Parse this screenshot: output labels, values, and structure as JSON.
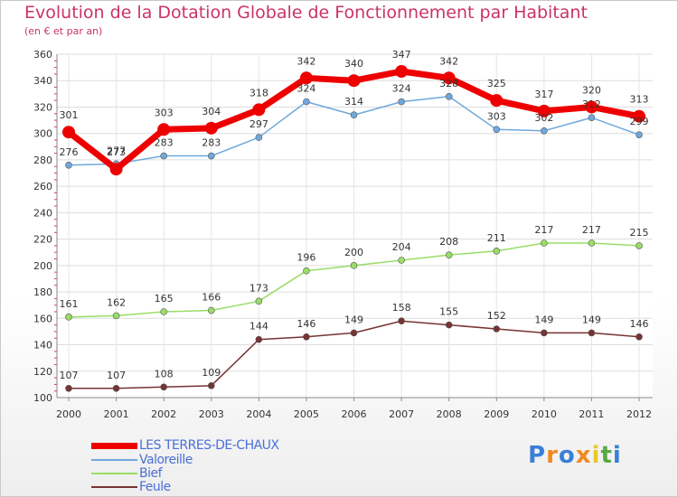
{
  "chart_data": {
    "type": "line",
    "title": "Evolution de la Dotation Globale de Fonctionnement par Habitant",
    "subtitle": "(en € et par an)",
    "xlabel": "",
    "ylabel": "",
    "ylim": [
      100,
      360
    ],
    "yticks": [
      100,
      120,
      140,
      160,
      180,
      200,
      220,
      240,
      260,
      280,
      300,
      320,
      340,
      360
    ],
    "grid": true,
    "legend_position": "bottom-left",
    "categories": [
      "2000",
      "2001",
      "2002",
      "2003",
      "2004",
      "2005",
      "2006",
      "2007",
      "2008",
      "2009",
      "2010",
      "2011",
      "2012"
    ],
    "series": [
      {
        "name": "LES TERRES-DE-CHAUX",
        "color": "#ee0000",
        "values": [
          301,
          273,
          303,
          304,
          318,
          342,
          340,
          347,
          342,
          325,
          317,
          320,
          313
        ]
      },
      {
        "name": "Valoreille",
        "color": "#6fa8dc",
        "values": [
          276,
          277,
          283,
          283,
          297,
          324,
          314,
          324,
          328,
          303,
          302,
          312,
          299
        ]
      },
      {
        "name": "Bief",
        "color": "#99dd66",
        "values": [
          161,
          162,
          165,
          166,
          173,
          196,
          200,
          204,
          208,
          211,
          217,
          217,
          215
        ]
      },
      {
        "name": "Feule",
        "color": "#773333",
        "values": [
          107,
          107,
          108,
          109,
          144,
          146,
          149,
          158,
          155,
          152,
          149,
          149,
          146
        ]
      }
    ]
  },
  "logo": {
    "text": "Proxiti",
    "letters": [
      "P",
      "r",
      "o",
      "x",
      "i",
      "t",
      "i"
    ],
    "colors": [
      "#3a7fd8",
      "#f08a24",
      "#3a7fd8",
      "#f08a24",
      "#e8c92a",
      "#55aa44",
      "#3a7fd8"
    ]
  }
}
